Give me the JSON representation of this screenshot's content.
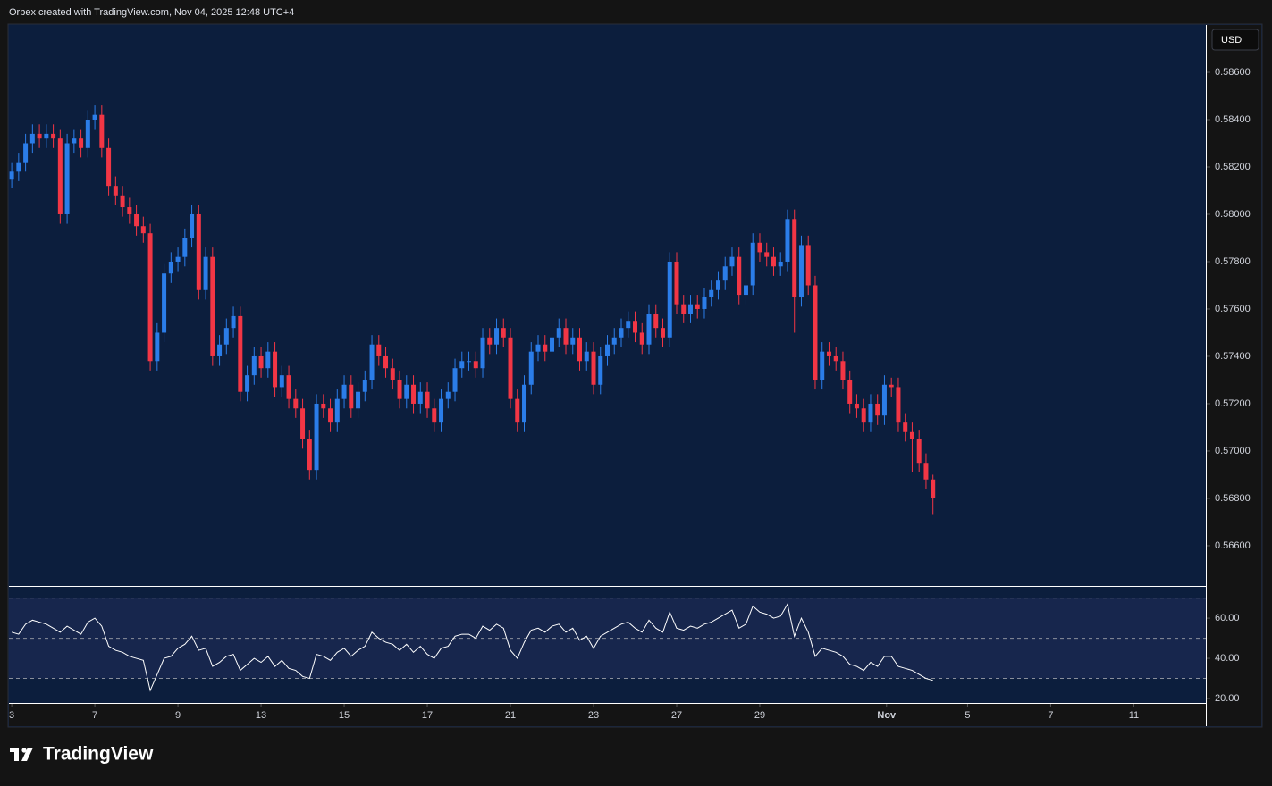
{
  "header": "Orbex created with TradingView.com, Nov 04, 2025 12:48 UTC+4",
  "currency": "USD",
  "logo": "TradingView",
  "chart_data": [
    {
      "type": "candlestick",
      "up_color": "#2b7de9",
      "down_color": "#f23645",
      "open": [
        0.5815,
        0.5818,
        0.5822,
        0.583,
        0.5834,
        0.5832,
        0.5834,
        0.5832,
        0.58,
        0.583,
        0.5832,
        0.5828,
        0.584,
        0.5842,
        0.5828,
        0.5812,
        0.5808,
        0.5803,
        0.58,
        0.5795,
        0.5792,
        0.5738,
        0.575,
        0.5775,
        0.578,
        0.5782,
        0.579,
        0.58,
        0.5768,
        0.5782,
        0.574,
        0.5745,
        0.5752,
        0.5757,
        0.5725,
        0.5732,
        0.574,
        0.5735,
        0.5742,
        0.5727,
        0.5732,
        0.5722,
        0.5718,
        0.5705,
        0.5692,
        0.572,
        0.5718,
        0.5712,
        0.5722,
        0.5728,
        0.5718,
        0.5725,
        0.573,
        0.5745,
        0.574,
        0.5735,
        0.573,
        0.5722,
        0.5728,
        0.572,
        0.5725,
        0.5718,
        0.5712,
        0.5722,
        0.5725,
        0.5735,
        0.5738,
        0.5738,
        0.5735,
        0.5748,
        0.5745,
        0.5752,
        0.5748,
        0.5722,
        0.5712,
        0.5728,
        0.5742,
        0.5745,
        0.5742,
        0.5748,
        0.5752,
        0.5745,
        0.5748,
        0.5738,
        0.5742,
        0.5728,
        0.574,
        0.5745,
        0.5748,
        0.5752,
        0.5755,
        0.575,
        0.5745,
        0.5758,
        0.5752,
        0.5748,
        0.578,
        0.5762,
        0.5758,
        0.5762,
        0.576,
        0.5765,
        0.5768,
        0.5772,
        0.5778,
        0.5782,
        0.5766,
        0.577,
        0.5788,
        0.5784,
        0.5782,
        0.5778,
        0.578,
        0.5798,
        0.5765,
        0.5787,
        0.577,
        0.573,
        0.5742,
        0.574,
        0.5738,
        0.573,
        0.572,
        0.5718,
        0.5712,
        0.572,
        0.5715,
        0.5728,
        0.5727,
        0.5712,
        0.5708,
        0.5705,
        0.5695,
        0.5688
      ],
      "high": [
        0.5822,
        0.5826,
        0.5834,
        0.5838,
        0.5838,
        0.5838,
        0.5838,
        0.5836,
        0.5834,
        0.5836,
        0.5836,
        0.5844,
        0.5846,
        0.5846,
        0.5832,
        0.5816,
        0.5812,
        0.5807,
        0.5804,
        0.5799,
        0.5796,
        0.5754,
        0.5779,
        0.5784,
        0.5786,
        0.5794,
        0.5804,
        0.5804,
        0.5786,
        0.5786,
        0.5749,
        0.5756,
        0.5761,
        0.5761,
        0.5736,
        0.5744,
        0.5744,
        0.5746,
        0.5746,
        0.5736,
        0.5736,
        0.5726,
        0.5722,
        0.5709,
        0.5724,
        0.5724,
        0.5722,
        0.5726,
        0.5732,
        0.5732,
        0.5729,
        0.5734,
        0.5749,
        0.5749,
        0.5744,
        0.5739,
        0.5734,
        0.5732,
        0.5732,
        0.5729,
        0.5729,
        0.5722,
        0.5726,
        0.5729,
        0.5739,
        0.5742,
        0.5742,
        0.5742,
        0.5752,
        0.5752,
        0.5756,
        0.5756,
        0.5752,
        0.5726,
        0.5732,
        0.5746,
        0.5749,
        0.5749,
        0.5752,
        0.5756,
        0.5756,
        0.5752,
        0.5752,
        0.5746,
        0.5746,
        0.5744,
        0.5749,
        0.5752,
        0.5756,
        0.5759,
        0.5759,
        0.5754,
        0.5762,
        0.5762,
        0.5756,
        0.5784,
        0.5784,
        0.5766,
        0.5766,
        0.5766,
        0.5769,
        0.5772,
        0.5776,
        0.5782,
        0.5786,
        0.5786,
        0.5774,
        0.5792,
        0.5792,
        0.5788,
        0.5786,
        0.5784,
        0.5802,
        0.5802,
        0.5791,
        0.5791,
        0.5774,
        0.5746,
        0.5746,
        0.5744,
        0.5742,
        0.5734,
        0.5724,
        0.5722,
        0.5724,
        0.5724,
        0.5732,
        0.5731,
        0.5731,
        0.5716,
        0.5712,
        0.5709,
        0.5699,
        0.569
      ],
      "low": [
        0.5811,
        0.5814,
        0.5818,
        0.5826,
        0.5828,
        0.5828,
        0.5828,
        0.5796,
        0.5796,
        0.5826,
        0.5824,
        0.5824,
        0.5836,
        0.5824,
        0.5808,
        0.5804,
        0.5799,
        0.5796,
        0.5791,
        0.5788,
        0.5734,
        0.5734,
        0.5746,
        0.5771,
        0.5776,
        0.5778,
        0.5786,
        0.5764,
        0.5764,
        0.5736,
        0.5736,
        0.5741,
        0.5748,
        0.5721,
        0.5721,
        0.5728,
        0.5731,
        0.5731,
        0.5723,
        0.5723,
        0.5718,
        0.5714,
        0.5701,
        0.5688,
        0.5688,
        0.5714,
        0.5708,
        0.5708,
        0.5718,
        0.5714,
        0.5714,
        0.5721,
        0.5726,
        0.5736,
        0.5731,
        0.5726,
        0.5718,
        0.5718,
        0.5716,
        0.5716,
        0.5714,
        0.5708,
        0.5708,
        0.5718,
        0.5721,
        0.5731,
        0.5734,
        0.5731,
        0.5731,
        0.5741,
        0.5741,
        0.5744,
        0.5718,
        0.5708,
        0.5708,
        0.5724,
        0.5738,
        0.5738,
        0.5738,
        0.5744,
        0.5741,
        0.5741,
        0.5734,
        0.5734,
        0.5724,
        0.5724,
        0.5736,
        0.5741,
        0.5744,
        0.5748,
        0.5746,
        0.5741,
        0.5741,
        0.5748,
        0.5744,
        0.5744,
        0.5758,
        0.5754,
        0.5754,
        0.5756,
        0.5756,
        0.5761,
        0.5764,
        0.5768,
        0.5774,
        0.5762,
        0.5762,
        0.5766,
        0.578,
        0.5778,
        0.5774,
        0.5774,
        0.5776,
        0.575,
        0.5761,
        0.5766,
        0.5726,
        0.5726,
        0.5736,
        0.5734,
        0.5726,
        0.5716,
        0.5714,
        0.5708,
        0.5708,
        0.5711,
        0.5711,
        0.5723,
        0.5708,
        0.5704,
        0.5691,
        0.5691,
        0.5684,
        0.5673
      ],
      "close": [
        0.5818,
        0.5822,
        0.583,
        0.5834,
        0.5832,
        0.5834,
        0.5832,
        0.58,
        0.583,
        0.5832,
        0.5828,
        0.584,
        0.5842,
        0.5828,
        0.5812,
        0.5808,
        0.5803,
        0.58,
        0.5795,
        0.5792,
        0.5738,
        0.575,
        0.5775,
        0.578,
        0.5782,
        0.579,
        0.58,
        0.5768,
        0.5782,
        0.574,
        0.5745,
        0.5752,
        0.5757,
        0.5725,
        0.5732,
        0.574,
        0.5735,
        0.5742,
        0.5727,
        0.5732,
        0.5722,
        0.5718,
        0.5705,
        0.5692,
        0.572,
        0.5718,
        0.5712,
        0.5722,
        0.5728,
        0.5718,
        0.5725,
        0.573,
        0.5745,
        0.574,
        0.5735,
        0.573,
        0.5722,
        0.5728,
        0.572,
        0.5725,
        0.5718,
        0.5712,
        0.5722,
        0.5725,
        0.5735,
        0.5738,
        0.5738,
        0.5735,
        0.5748,
        0.5745,
        0.5752,
        0.5748,
        0.5722,
        0.5712,
        0.5728,
        0.5742,
        0.5745,
        0.5742,
        0.5748,
        0.5752,
        0.5745,
        0.5748,
        0.5738,
        0.5742,
        0.5728,
        0.574,
        0.5745,
        0.5748,
        0.5752,
        0.5755,
        0.575,
        0.5745,
        0.5758,
        0.5752,
        0.5748,
        0.578,
        0.5762,
        0.5758,
        0.5762,
        0.576,
        0.5765,
        0.5768,
        0.5772,
        0.5778,
        0.5782,
        0.5766,
        0.577,
        0.5788,
        0.5784,
        0.5782,
        0.5778,
        0.578,
        0.5798,
        0.5765,
        0.5787,
        0.577,
        0.573,
        0.5742,
        0.574,
        0.5738,
        0.573,
        0.572,
        0.5718,
        0.5712,
        0.572,
        0.5715,
        0.5728,
        0.5727,
        0.5712,
        0.5708,
        0.5705,
        0.5695,
        0.5688,
        0.568
      ],
      "ylim": [
        0.5643,
        0.588
      ],
      "yticks": [
        {
          "value": 0.566,
          "label": "0.56600"
        },
        {
          "value": 0.568,
          "label": "0.56800"
        },
        {
          "value": 0.57,
          "label": "0.57000"
        },
        {
          "value": 0.572,
          "label": "0.57200"
        },
        {
          "value": 0.574,
          "label": "0.57400"
        },
        {
          "value": 0.576,
          "label": "0.57600"
        },
        {
          "value": 0.578,
          "label": "0.57800"
        },
        {
          "value": 0.58,
          "label": "0.58000"
        },
        {
          "value": 0.582,
          "label": "0.58200"
        },
        {
          "value": 0.584,
          "label": "0.58400"
        },
        {
          "value": 0.586,
          "label": "0.58600"
        }
      ],
      "xlim": [
        -0.4,
        172.4
      ],
      "xticks": [
        {
          "value": 0,
          "label": "3"
        },
        {
          "value": 12,
          "label": "7"
        },
        {
          "value": 24,
          "label": "9"
        },
        {
          "value": 36,
          "label": "13"
        },
        {
          "value": 48,
          "label": "15"
        },
        {
          "value": 60,
          "label": "17"
        },
        {
          "value": 72,
          "label": "21"
        },
        {
          "value": 84,
          "label": "23"
        },
        {
          "value": 96,
          "label": "27"
        },
        {
          "value": 108,
          "label": "29"
        },
        {
          "value": 126.3,
          "label": "Nov"
        },
        {
          "value": 138,
          "label": "5"
        },
        {
          "value": 150,
          "label": "7"
        },
        {
          "value": 162,
          "label": "11"
        }
      ]
    },
    {
      "type": "line",
      "color": "#ffffff",
      "values": [
        53,
        52,
        57,
        59,
        58,
        57,
        55,
        53,
        56,
        54,
        52,
        58,
        60,
        56,
        46,
        44,
        43,
        41,
        40,
        39,
        24,
        32,
        40,
        41,
        45,
        47,
        51,
        44,
        45,
        36,
        38,
        41,
        42,
        34,
        37,
        40,
        38,
        41,
        36,
        39,
        35,
        34,
        31,
        30,
        42,
        41,
        39,
        43,
        45,
        41,
        44,
        46,
        53,
        50,
        48,
        47,
        44,
        47,
        43,
        46,
        42,
        40,
        45,
        46,
        51,
        52,
        52,
        50,
        56,
        54,
        57,
        55,
        44,
        40,
        48,
        54,
        55,
        53,
        56,
        57,
        53,
        55,
        49,
        51,
        45,
        51,
        53,
        55,
        57,
        58,
        55,
        53,
        59,
        55,
        53,
        63,
        55,
        54,
        56,
        55,
        57,
        58,
        60,
        62,
        64,
        55,
        57,
        66,
        63,
        62,
        60,
        61,
        67,
        51,
        60,
        53,
        41,
        45,
        44,
        43,
        41,
        37,
        36,
        34,
        38,
        36,
        41,
        41,
        36,
        35,
        34,
        32,
        30,
        29
      ],
      "levels": [
        30,
        50,
        70
      ],
      "ylim": [
        17.8,
        75.6
      ],
      "yticks": [
        {
          "value": 20,
          "label": "20.00"
        },
        {
          "value": 40,
          "label": "40.00"
        },
        {
          "value": 60,
          "label": "60.00"
        }
      ]
    }
  ]
}
